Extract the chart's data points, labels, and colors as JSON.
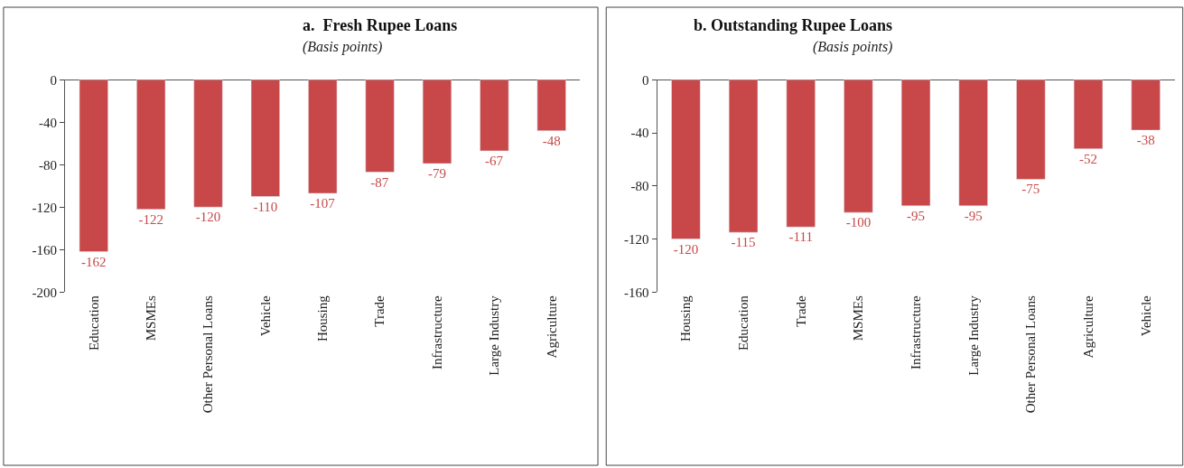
{
  "chart_data": [
    {
      "type": "bar",
      "title": "a.  Fresh Rupee Loans",
      "subtitle": "(Basis points)",
      "categories": [
        "Education",
        "MSMEs",
        "Other Personal Loans",
        "Vehicle",
        "Housing",
        "Trade",
        "Infrastructure",
        "Large Industry",
        "Agriculture"
      ],
      "values": [
        -162,
        -122,
        -120,
        -110,
        -107,
        -87,
        -79,
        -67,
        -48
      ],
      "color": "#c8484a",
      "ylim": [
        -200,
        0
      ],
      "yticks": [
        -200,
        -160,
        -120,
        -80,
        -40,
        0
      ],
      "data_labels": true
    },
    {
      "type": "bar",
      "title": "b. Outstanding Rupee Loans",
      "subtitle": "(Basis points)",
      "categories": [
        "Housing",
        "Education",
        "Trade",
        "MSMEs",
        "Infrastructure",
        "Large Industry",
        "Other Personal Loans",
        "Agriculture",
        "Vehicle"
      ],
      "values": [
        -120,
        -115,
        -111,
        -100,
        -95,
        -95,
        -75,
        -52,
        -38
      ],
      "color": "#c8484a",
      "ylim": [
        -160,
        0
      ],
      "yticks": [
        -160,
        -120,
        -80,
        -40,
        0
      ],
      "data_labels": true
    }
  ]
}
